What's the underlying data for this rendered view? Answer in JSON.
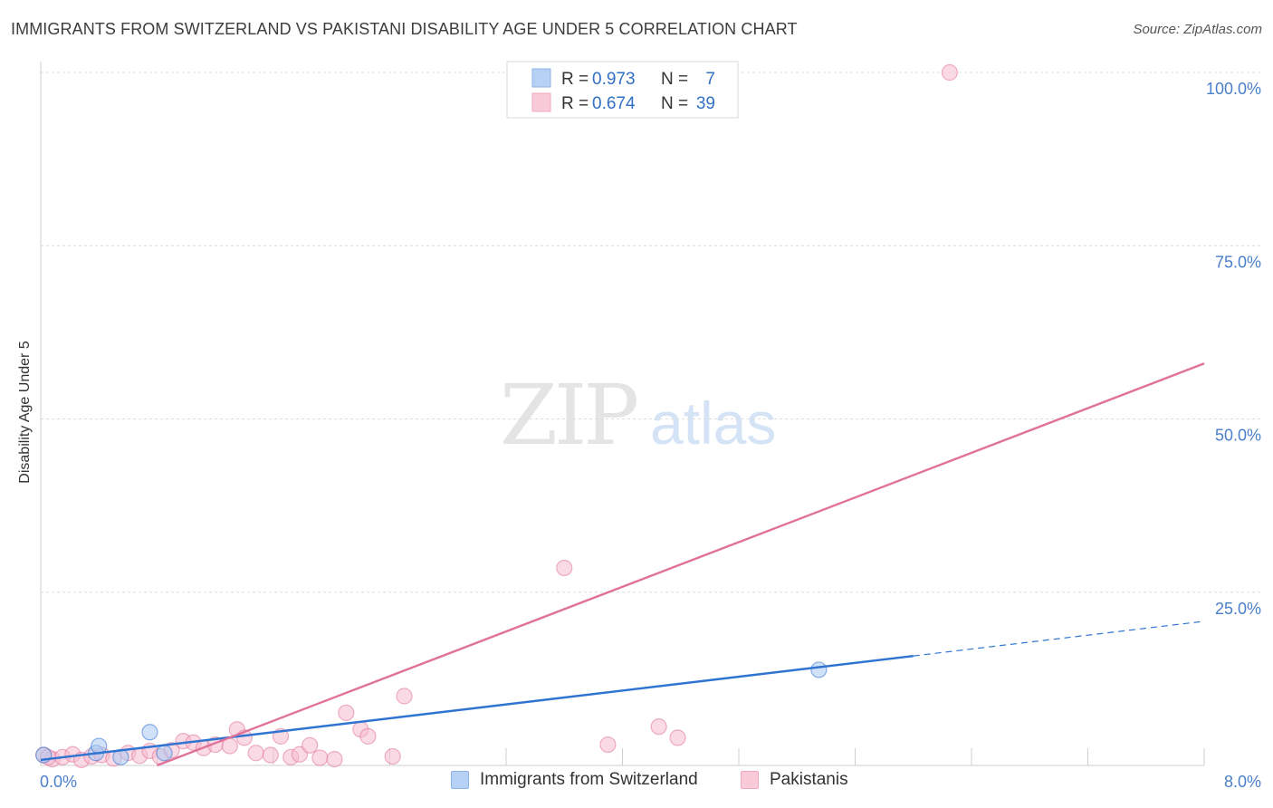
{
  "chart_data": {
    "type": "scatter",
    "title": "IMMIGRANTS FROM SWITZERLAND VS PAKISTANI DISABILITY AGE UNDER 5 CORRELATION CHART",
    "source": "Source: ZipAtlas.com",
    "ylabel": "Disability Age Under 5",
    "xlabel": "",
    "xlim": [
      0,
      8
    ],
    "ylim": [
      0,
      100
    ],
    "x_tick_labels": {
      "min": "0.0%",
      "max": "8.0%"
    },
    "y_ticks": [
      {
        "value": 25,
        "label": "25.0%"
      },
      {
        "value": 50,
        "label": "50.0%"
      },
      {
        "value": 75,
        "label": "75.0%"
      },
      {
        "value": 100,
        "label": "100.0%"
      }
    ],
    "watermark": {
      "zip": "ZIP",
      "atlas": "atlas"
    },
    "legend": [
      {
        "r_label": "R =",
        "r_value": "0.973",
        "n_label": "N =",
        "n_value": "7"
      },
      {
        "r_label": "R =",
        "r_value": "0.674",
        "n_label": "N =",
        "n_value": "39"
      }
    ],
    "series": [
      {
        "name": "Immigrants from Switzerland",
        "color": "#2f74d0",
        "fill": "#a9c8f2",
        "points": [
          [
            0.02,
            1.5
          ],
          [
            0.38,
            1.8
          ],
          [
            0.4,
            2.8
          ],
          [
            0.55,
            1.2
          ],
          [
            0.75,
            4.8
          ],
          [
            0.85,
            1.8
          ],
          [
            5.35,
            13.8
          ]
        ],
        "trend_solid": [
          [
            0.0,
            0.8
          ],
          [
            6.0,
            15.8
          ]
        ],
        "trend_dashed": [
          [
            6.0,
            15.8
          ],
          [
            8.0,
            20.8
          ]
        ]
      },
      {
        "name": "Pakistanis",
        "color": "#e0729a",
        "fill": "#f6bccf",
        "points": [
          [
            0.02,
            1.5
          ],
          [
            0.08,
            0.9
          ],
          [
            0.15,
            1.2
          ],
          [
            0.22,
            1.6
          ],
          [
            0.28,
            0.8
          ],
          [
            0.35,
            1.3
          ],
          [
            0.42,
            1.5
          ],
          [
            0.5,
            1.0
          ],
          [
            0.6,
            1.8
          ],
          [
            0.68,
            1.4
          ],
          [
            0.75,
            2.1
          ],
          [
            0.82,
            1.3
          ],
          [
            0.9,
            2.2
          ],
          [
            0.98,
            3.5
          ],
          [
            1.05,
            3.3
          ],
          [
            1.12,
            2.5
          ],
          [
            1.2,
            3.0
          ],
          [
            1.3,
            2.8
          ],
          [
            1.35,
            5.2
          ],
          [
            1.4,
            4.0
          ],
          [
            1.48,
            1.8
          ],
          [
            1.58,
            1.5
          ],
          [
            1.65,
            4.2
          ],
          [
            1.72,
            1.2
          ],
          [
            1.78,
            1.6
          ],
          [
            1.85,
            2.9
          ],
          [
            1.92,
            1.1
          ],
          [
            2.02,
            0.9
          ],
          [
            2.1,
            7.6
          ],
          [
            2.2,
            5.2
          ],
          [
            2.25,
            4.2
          ],
          [
            2.42,
            1.3
          ],
          [
            2.5,
            10.0
          ],
          [
            3.6,
            28.5
          ],
          [
            3.9,
            3.0
          ],
          [
            4.25,
            5.6
          ],
          [
            4.38,
            4.0
          ],
          [
            6.25,
            100.0
          ],
          [
            0.05,
            1.2
          ]
        ],
        "trend_solid": [
          [
            0.8,
            0.0
          ],
          [
            8.0,
            58.0
          ]
        ]
      }
    ]
  }
}
